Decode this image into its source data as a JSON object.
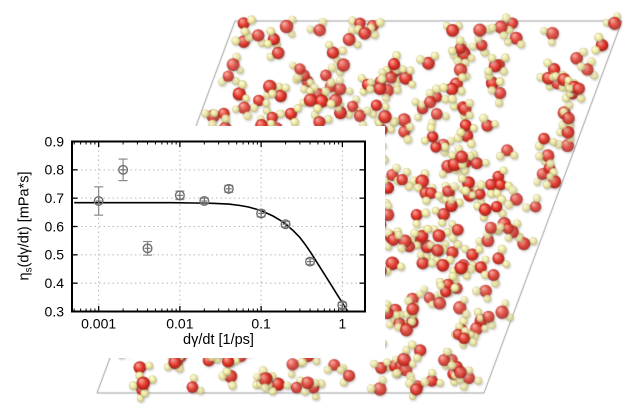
{
  "figure": {
    "description": "Shear viscosity of simulated water: inset log-scale plot of viscosity vs shear rate over a sheared molecular-dynamics simulation box snapshot",
    "background_color": "#ffffff"
  },
  "snapshot": {
    "box_outline_color": "#9b9b9b",
    "oxygen_color": "#e63327",
    "oxygen_highlight": "#f9968b",
    "oxygen_shade": "#9c1d15",
    "hydrogen_color": "#f2eda4",
    "hydrogen_highlight": "#fdfbe0",
    "hydrogen_shade": "#c5bb72",
    "bond_color": "#d4d4d4",
    "molecule_count": 340
  },
  "chart_data": {
    "type": "scatter",
    "title": "",
    "xlabel": "dγ/dt [1/ps]",
    "ylabel": "ηs(dγ/dt) [mPa*s]",
    "ylabel_parts": {
      "symbol": "η",
      "subscript": "s",
      "rest": "(dγ/dt) [mPa*s]"
    },
    "x_scale": "log",
    "xlim": [
      0.00047,
      1.9
    ],
    "ylim": [
      0.3,
      0.9
    ],
    "x_ticks": [
      0.001,
      0.01,
      0.1,
      1
    ],
    "x_tick_labels": [
      "0.001",
      "0.01",
      "0.1",
      "1"
    ],
    "y_ticks": [
      0.3,
      0.4,
      0.5,
      0.6,
      0.7,
      0.8,
      0.9
    ],
    "y_tick_labels": [
      "0.3",
      "0.4",
      "0.5",
      "0.6",
      "0.7",
      "0.8",
      "0.9"
    ],
    "grid": true,
    "grid_color": "#b8b8b8",
    "marker": "circle-plus",
    "marker_color": "#6e6e6e",
    "errorbar_color": "#8a8a8a",
    "line_color": "#000000",
    "points": [
      {
        "x": 0.001,
        "y": 0.69,
        "yerr": 0.05
      },
      {
        "x": 0.002,
        "y": 0.8,
        "yerr": 0.038
      },
      {
        "x": 0.004,
        "y": 0.523,
        "yerr": 0.024
      },
      {
        "x": 0.01,
        "y": 0.71,
        "yerr": 0.015
      },
      {
        "x": 0.02,
        "y": 0.69,
        "yerr": 0.01
      },
      {
        "x": 0.04,
        "y": 0.733,
        "yerr": 0.012
      },
      {
        "x": 0.1,
        "y": 0.646,
        "yerr": 0.012
      },
      {
        "x": 0.2,
        "y": 0.608,
        "yerr": 0.01
      },
      {
        "x": 0.4,
        "y": 0.476,
        "yerr": 0.01
      },
      {
        "x": 1.0,
        "y": 0.322,
        "yerr": 0.01
      }
    ],
    "fit_curve": [
      [
        0.0005,
        0.684
      ],
      [
        0.001,
        0.684
      ],
      [
        0.002,
        0.684
      ],
      [
        0.004,
        0.684
      ],
      [
        0.008,
        0.684
      ],
      [
        0.015,
        0.683
      ],
      [
        0.025,
        0.682
      ],
      [
        0.04,
        0.679
      ],
      [
        0.055,
        0.674
      ],
      [
        0.07,
        0.669
      ],
      [
        0.09,
        0.66
      ],
      [
        0.11,
        0.651
      ],
      [
        0.14,
        0.637
      ],
      [
        0.17,
        0.623
      ],
      [
        0.2,
        0.609
      ],
      [
        0.25,
        0.585
      ],
      [
        0.3,
        0.561
      ],
      [
        0.35,
        0.536
      ],
      [
        0.42,
        0.503
      ],
      [
        0.5,
        0.468
      ],
      [
        0.6,
        0.432
      ],
      [
        0.72,
        0.396
      ],
      [
        0.85,
        0.363
      ],
      [
        1.0,
        0.33
      ],
      [
        1.1,
        0.312
      ],
      [
        1.17,
        0.3
      ]
    ]
  }
}
